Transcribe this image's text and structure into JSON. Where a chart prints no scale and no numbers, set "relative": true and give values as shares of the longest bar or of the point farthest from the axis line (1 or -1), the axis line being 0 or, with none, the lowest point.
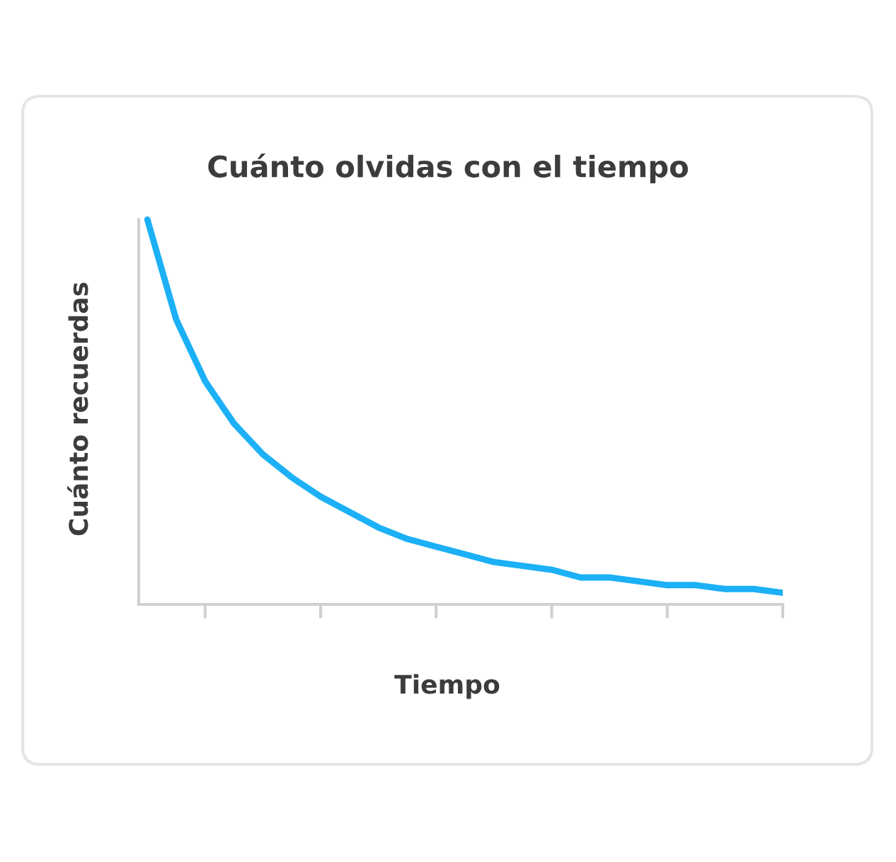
{
  "chart_data": {
    "type": "line",
    "title": "Cuánto olvidas con el tiempo",
    "xlabel": "Tiempo",
    "ylabel": "Cuánto recuerdas",
    "relative": true,
    "categories": [
      null,
      null,
      null,
      null,
      null,
      null,
      null,
      null,
      null,
      null,
      null,
      null,
      null,
      null,
      null,
      null,
      null,
      null,
      null,
      null,
      null,
      null,
      null
    ],
    "series": [
      {
        "color": "#1cb0f6",
        "values": [
          1,
          0.74,
          0.58,
          0.47,
          0.39,
          0.33,
          0.28,
          0.24,
          0.2,
          0.17,
          0.15,
          0.13,
          0.11,
          0.1,
          0.09,
          0.07,
          0.07,
          0.06,
          0.05,
          0.05,
          0.04,
          0.04,
          0.03
        ]
      }
    ]
  }
}
